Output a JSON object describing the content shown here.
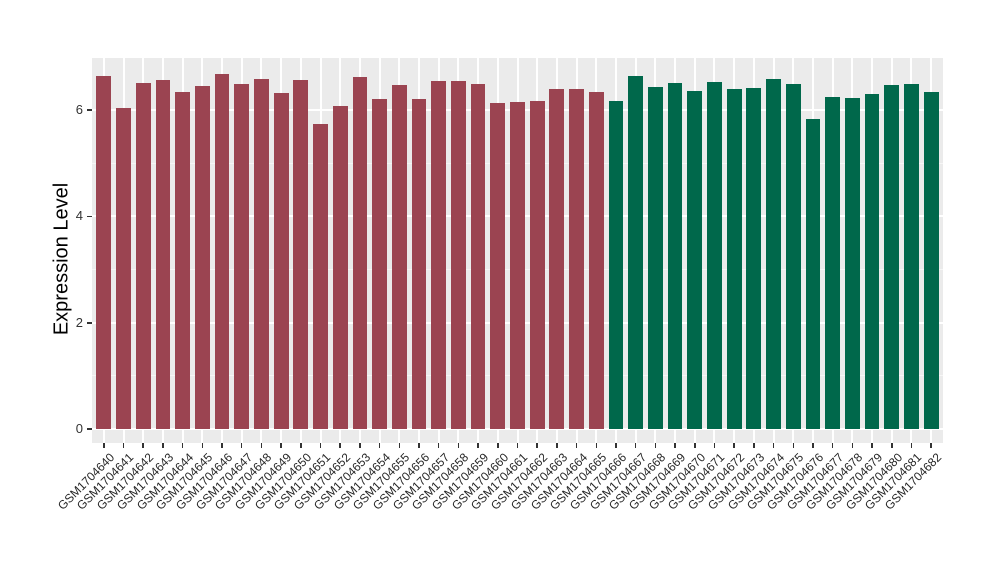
{
  "chart_data": {
    "type": "bar",
    "title": "",
    "xlabel": "",
    "ylabel": "Expression Level",
    "legend_position": "none",
    "grid": true,
    "panel_background": "#EBEBEB",
    "gridline_color": "#FFFFFF",
    "tick_color": "#333333",
    "y_ticks": [
      0,
      2,
      4,
      6
    ],
    "y_minor_ticks": [
      1,
      3,
      5
    ],
    "ylim": [
      -0.26,
      6.98
    ],
    "x_tick_rotation": 45,
    "bar_relative_width": 0.75,
    "group_split_index": 26,
    "group_colors": [
      "#9B4451",
      "#00684B"
    ],
    "categories": [
      "GSM1704640",
      "GSM1704641",
      "GSM1704642",
      "GSM1704643",
      "GSM1704644",
      "GSM1704645",
      "GSM1704646",
      "GSM1704647",
      "GSM1704648",
      "GSM1704649",
      "GSM1704650",
      "GSM1704651",
      "GSM1704652",
      "GSM1704653",
      "GSM1704654",
      "GSM1704655",
      "GSM1704656",
      "GSM1704657",
      "GSM1704658",
      "GSM1704659",
      "GSM1704660",
      "GSM1704661",
      "GSM1704662",
      "GSM1704663",
      "GSM1704664",
      "GSM1704665",
      "GSM1704666",
      "GSM1704667",
      "GSM1704668",
      "GSM1704669",
      "GSM1704670",
      "GSM1704671",
      "GSM1704672",
      "GSM1704673",
      "GSM1704674",
      "GSM1704675",
      "GSM1704676",
      "GSM1704677",
      "GSM1704678",
      "GSM1704679",
      "GSM1704680",
      "GSM1704681",
      "GSM1704682"
    ],
    "values": [
      6.65,
      6.04,
      6.51,
      6.57,
      6.35,
      6.45,
      6.67,
      6.5,
      6.58,
      6.32,
      6.56,
      5.74,
      6.07,
      6.62,
      6.2,
      6.48,
      6.21,
      6.55,
      6.54,
      6.49,
      6.14,
      6.16,
      6.18,
      6.4,
      6.39,
      6.34,
      6.18,
      6.65,
      6.43,
      6.51,
      6.36,
      6.53,
      6.39,
      6.41,
      6.58,
      6.49,
      5.84,
      6.24,
      6.22,
      6.31,
      6.48,
      6.5,
      6.34
    ]
  }
}
